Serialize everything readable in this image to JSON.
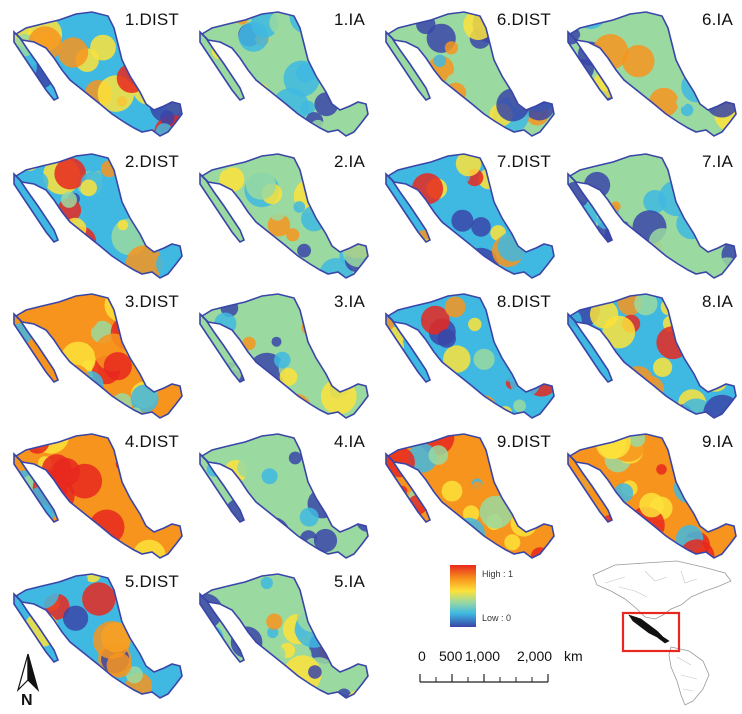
{
  "panels": [
    {
      "label": "1.DIST",
      "palette": "mixed"
    },
    {
      "label": "1.IA",
      "palette": "cool"
    },
    {
      "label": "6.DIST",
      "palette": "cool"
    },
    {
      "label": "6.IA",
      "palette": "cool"
    },
    {
      "label": "2.DIST",
      "palette": "mixed"
    },
    {
      "label": "2.IA",
      "palette": "cool"
    },
    {
      "label": "7.DIST",
      "palette": "mixed"
    },
    {
      "label": "7.IA",
      "palette": "cool"
    },
    {
      "label": "3.DIST",
      "palette": "warm"
    },
    {
      "label": "3.IA",
      "palette": "cool"
    },
    {
      "label": "8.DIST",
      "palette": "mixed"
    },
    {
      "label": "8.IA",
      "palette": "mixed"
    },
    {
      "label": "4.DIST",
      "palette": "warm"
    },
    {
      "label": "4.IA",
      "palette": "cool"
    },
    {
      "label": "9.DIST",
      "palette": "warm"
    },
    {
      "label": "9.IA",
      "palette": "warm"
    },
    {
      "label": "5.DIST",
      "palette": "mixed"
    },
    {
      "label": "5.IA",
      "palette": "cool"
    }
  ],
  "legend": {
    "high": "High : 1",
    "low": "Low : 0",
    "colors": [
      "#e8281e",
      "#f7941d",
      "#fde23a",
      "#9ad9a0",
      "#3fb9e2",
      "#3a45a8"
    ]
  },
  "scalebar": {
    "t0": "0",
    "t1": "500",
    "t2": "1,000",
    "t3": "2,000",
    "unit": "km"
  },
  "north": {
    "letter": "N"
  },
  "colors": {
    "water_blue": "#3a45a8",
    "highlight_box": "#e8281e",
    "inset_land": "#111111"
  }
}
